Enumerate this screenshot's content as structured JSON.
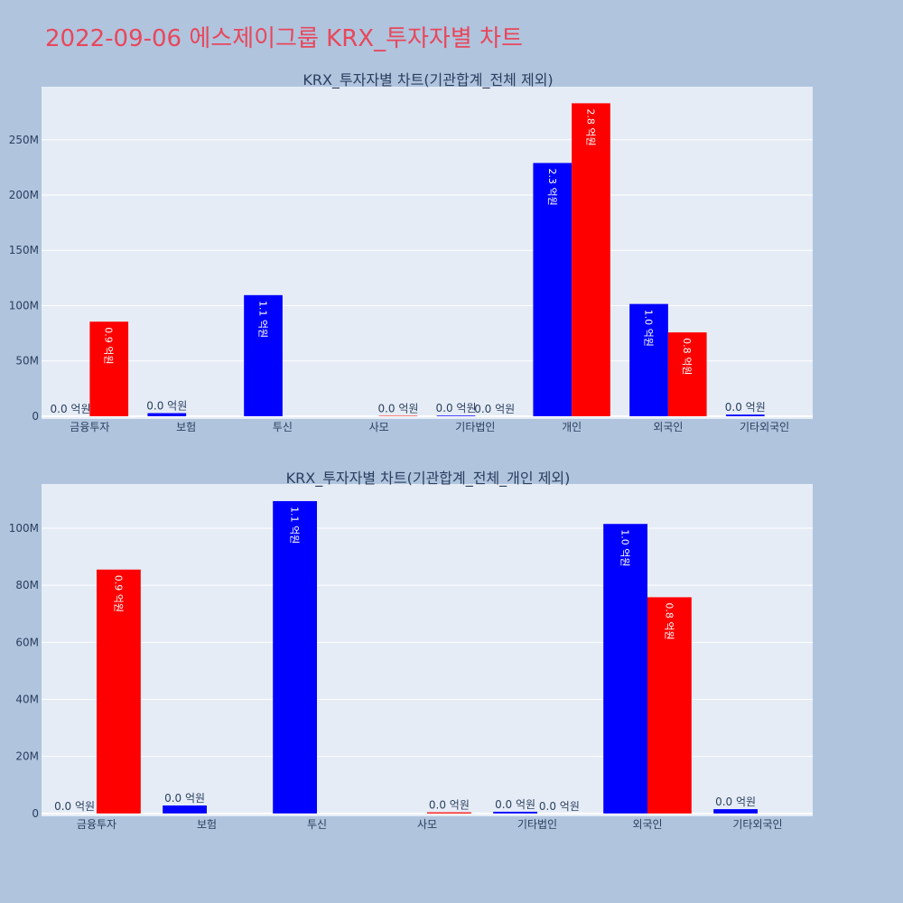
{
  "page": {
    "title": "2022-09-06 에스제이그룹 KRX_투자자별 차트"
  },
  "chart_data": [
    {
      "type": "bar",
      "title": "KRX_투자자별 차트(기관합계_전체 제외)",
      "categories": [
        "금융투자",
        "보험",
        "투신",
        "사모",
        "기타법인",
        "개인",
        "외국인",
        "기타외국인"
      ],
      "series": [
        {
          "color": "#0000ff",
          "values": [
            0,
            2800000,
            109500000,
            0,
            600000,
            229000000,
            101500000,
            1500000
          ],
          "labels": [
            "0.0 억원",
            "0.0 억원",
            "1.1 억원",
            "",
            "0.0 억원",
            "2.3 억원",
            "1.0 억원",
            "0.0 억원"
          ]
        },
        {
          "color": "#ff0000",
          "values": [
            85500000,
            0,
            0,
            400000,
            0,
            283000000,
            75800000,
            0
          ],
          "labels": [
            "0.9 억원",
            "",
            "",
            "0.0 억원",
            "0.0 억원",
            "2.8 억원",
            "0.8 억원",
            ""
          ]
        }
      ],
      "yticks": [
        0,
        50000000,
        100000000,
        150000000,
        200000000,
        250000000
      ],
      "ytick_labels": [
        "0",
        "50M",
        "100M",
        "150M",
        "200M",
        "250M"
      ],
      "ylim": [
        -2500000,
        298000000
      ],
      "grid": true
    },
    {
      "type": "bar",
      "title": "KRX_투자자별 차트(기관합계_전체_개인 제외)",
      "categories": [
        "금융투자",
        "보험",
        "투신",
        "사모",
        "기타법인",
        "외국인",
        "기타외국인"
      ],
      "series": [
        {
          "color": "#0000ff",
          "values": [
            0,
            2800000,
            109500000,
            0,
            600000,
            101500000,
            1500000
          ],
          "labels": [
            "0.0 억원",
            "0.0 억원",
            "1.1 억원",
            "",
            "0.0 억원",
            "1.0 억원",
            "0.0 억원"
          ]
        },
        {
          "color": "#ff0000",
          "values": [
            85500000,
            0,
            0,
            400000,
            0,
            75800000,
            0
          ],
          "labels": [
            "0.9 억원",
            "",
            "",
            "0.0 억원",
            "0.0 억원",
            "0.8 억원",
            ""
          ]
        }
      ],
      "yticks": [
        0,
        20000000,
        40000000,
        60000000,
        80000000,
        100000000
      ],
      "ytick_labels": [
        "0",
        "20M",
        "40M",
        "60M",
        "80M",
        "100M"
      ],
      "ylim": [
        -1000000,
        115500000
      ],
      "grid": true
    }
  ]
}
